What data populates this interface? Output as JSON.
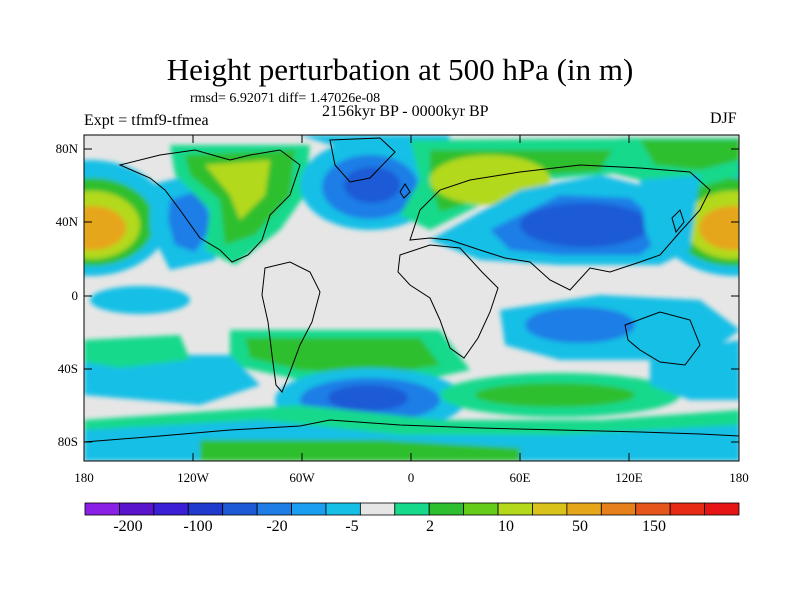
{
  "header": {
    "title": "Height perturbation at 500 hPa (in m)",
    "stats": "rmsd= 6.92071 diff= 1.47026e-08",
    "period": "2156kyr BP - 0000kyr BP",
    "experiment": "Expt = tfmf9-tfmea",
    "season": "DJF"
  },
  "map": {
    "lat_labels": [
      "80N",
      "40N",
      "0",
      "40S",
      "80S"
    ],
    "lon_labels": [
      "180",
      "120W",
      "60W",
      "0",
      "60E",
      "120E",
      "180"
    ],
    "lat_range": [
      -90,
      90
    ],
    "lon_range": [
      -180,
      180
    ]
  },
  "colorbar": {
    "labels": [
      "-200",
      "-100",
      "-20",
      "-5",
      "2",
      "10",
      "50",
      "150"
    ],
    "colors": [
      "#8a1fe6",
      "#5a14cc",
      "#3a1fd6",
      "#1f3acc",
      "#1f5ad6",
      "#1f7ee6",
      "#1a9ef0",
      "#16bfe6",
      "#e6e6e6",
      "#16d98c",
      "#2ebf2e",
      "#66cc1a",
      "#b3d91a",
      "#d9c21a",
      "#e6a61a",
      "#e6801a",
      "#e6561a",
      "#e62a14",
      "#e61414"
    ]
  },
  "colors": {
    "neutral": "#e6e6e6",
    "cyan": "#16bfe6",
    "lightblue": "#1f7ee6",
    "blue": "#1f5ad6",
    "green_light": "#16d98c",
    "green": "#2ebf2e",
    "yellowgreen": "#b3d91a",
    "orange": "#e6a61a"
  }
}
